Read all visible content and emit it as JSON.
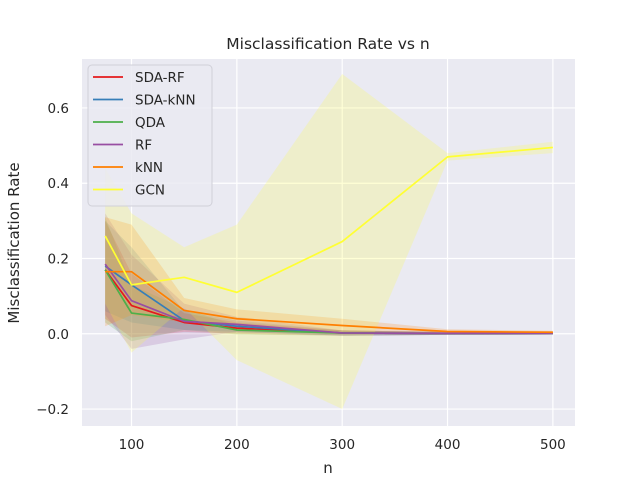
{
  "chart_data": {
    "type": "line",
    "title": "Misclassification Rate vs n",
    "xlabel": "n",
    "ylabel": "Misclassification Rate",
    "x": [
      75,
      100,
      150,
      200,
      300,
      400,
      500
    ],
    "xlim": [
      53,
      521
    ],
    "ylim": [
      -0.245,
      0.73
    ],
    "xticks": [
      100,
      200,
      300,
      400,
      500
    ],
    "yticks": [
      -0.2,
      0.0,
      0.2,
      0.4,
      0.6
    ],
    "ytick_labels": [
      "−0.2",
      "0.0",
      "0.2",
      "0.4",
      "0.6"
    ],
    "grid": true,
    "legend_position": "top-left",
    "background_color": "#eaeaf2",
    "series": [
      {
        "name": "SDA-RF",
        "color": "#e41a1c",
        "values": [
          0.17,
          0.075,
          0.03,
          0.015,
          0.002,
          0.001,
          0.001
        ],
        "lower": [
          0.04,
          -0.01,
          0.005,
          0.0,
          -0.005,
          -0.003,
          -0.002
        ],
        "upper": [
          0.3,
          0.16,
          0.055,
          0.03,
          0.009,
          0.005,
          0.004
        ]
      },
      {
        "name": "SDA-kNN",
        "color": "#377eb8",
        "values": [
          0.18,
          0.13,
          0.035,
          0.02,
          0.002,
          0.001,
          0.001
        ],
        "lower": [
          0.06,
          0.03,
          0.01,
          0.005,
          -0.005,
          -0.003,
          -0.002
        ],
        "upper": [
          0.3,
          0.23,
          0.06,
          0.035,
          0.009,
          0.005,
          0.004
        ]
      },
      {
        "name": "QDA",
        "color": "#4daf4a",
        "values": [
          0.17,
          0.055,
          0.038,
          0.01,
          0.002,
          0.001,
          0.001
        ],
        "lower": [
          0.03,
          -0.02,
          0.01,
          -0.002,
          -0.005,
          -0.003,
          -0.002
        ],
        "upper": [
          0.31,
          0.13,
          0.066,
          0.022,
          0.009,
          0.005,
          0.004
        ]
      },
      {
        "name": "RF",
        "color": "#984ea3",
        "values": [
          0.185,
          0.088,
          0.033,
          0.025,
          0.002,
          0.001,
          0.001
        ],
        "lower": [
          0.05,
          -0.04,
          -0.015,
          0.005,
          -0.005,
          -0.003,
          -0.002
        ],
        "upper": [
          0.32,
          0.21,
          0.08,
          0.045,
          0.009,
          0.005,
          0.004
        ]
      },
      {
        "name": "kNN",
        "color": "#ff7f00",
        "values": [
          0.165,
          0.165,
          0.062,
          0.04,
          0.022,
          0.006,
          0.004
        ],
        "lower": [
          0.02,
          0.05,
          0.03,
          0.015,
          0.005,
          0.0,
          0.0
        ],
        "upper": [
          0.31,
          0.29,
          0.095,
          0.065,
          0.04,
          0.012,
          0.008
        ]
      },
      {
        "name": "GCN",
        "color": "#ffff33",
        "values": [
          0.26,
          0.13,
          0.15,
          0.11,
          0.245,
          0.47,
          0.495
        ],
        "lower": [
          0.08,
          -0.05,
          0.07,
          -0.07,
          -0.2,
          0.46,
          0.48
        ],
        "upper": [
          0.44,
          0.32,
          0.23,
          0.29,
          0.69,
          0.48,
          0.51
        ]
      }
    ]
  }
}
